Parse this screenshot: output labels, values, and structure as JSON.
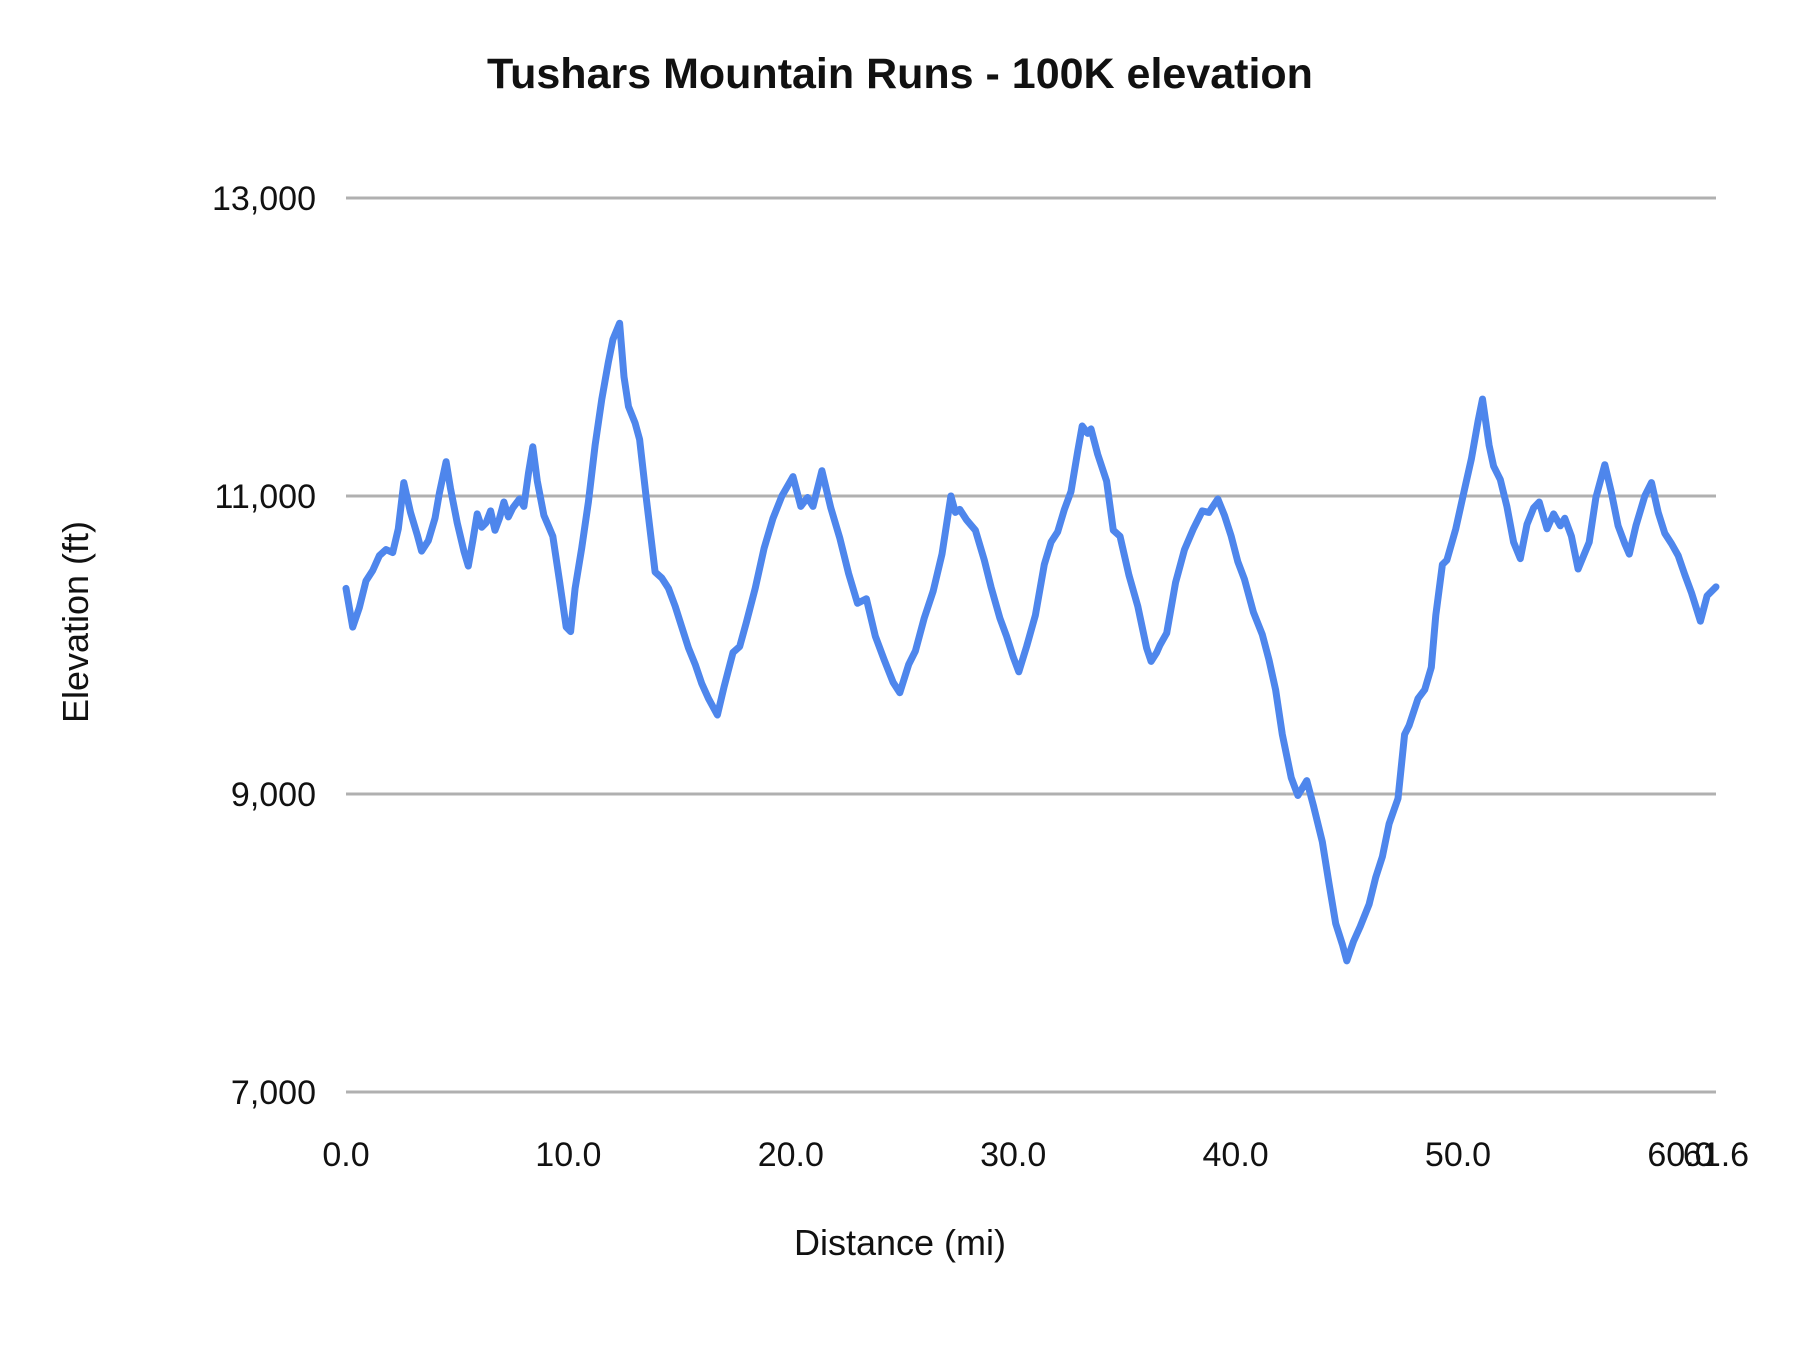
{
  "chart": {
    "title": "Tushars Mountain Runs - 100K elevation",
    "x_axis_title": "Distance (mi)",
    "y_axis_title": "Elevation (ft)",
    "line_color": "#4e86ec",
    "gridline_color": "#b0b0b0",
    "text_color": "#111111",
    "background_color": "#ffffff"
  },
  "chart_data": {
    "type": "line",
    "title": "Tushars Mountain Runs - 100K elevation",
    "xlabel": "Distance (mi)",
    "ylabel": "Elevation (ft)",
    "xlim": [
      0,
      61.6
    ],
    "ylim": [
      7000,
      13000
    ],
    "grid": "horizontal",
    "legend_position": "none",
    "x_ticks": [
      {
        "label": "0.0",
        "value": 0
      },
      {
        "label": "10.0",
        "value": 10
      },
      {
        "label": "20.0",
        "value": 20
      },
      {
        "label": "30.0",
        "value": 30
      },
      {
        "label": "40.0",
        "value": 40
      },
      {
        "label": "50.0",
        "value": 50
      },
      {
        "label": "60.0",
        "value": 60
      },
      {
        "label": "61.6",
        "value": 61.6
      }
    ],
    "y_ticks": [
      {
        "label": "7,000",
        "value": 7000
      },
      {
        "label": "9,000",
        "value": 9000
      },
      {
        "label": "11,000",
        "value": 11000
      },
      {
        "label": "13,000",
        "value": 13000
      }
    ],
    "series": [
      {
        "name": "Elevation (ft)",
        "color": "#4e86ec",
        "points": [
          [
            0,
            10380
          ],
          [
            0.3,
            10120
          ],
          [
            0.6,
            10250
          ],
          [
            0.9,
            10430
          ],
          [
            1.2,
            10500
          ],
          [
            1.5,
            10600
          ],
          [
            1.8,
            10640
          ],
          [
            2.1,
            10620
          ],
          [
            2.35,
            10780
          ],
          [
            2.6,
            11090
          ],
          [
            2.9,
            10890
          ],
          [
            3.2,
            10740
          ],
          [
            3.4,
            10630
          ],
          [
            3.7,
            10700
          ],
          [
            4.0,
            10850
          ],
          [
            4.2,
            11020
          ],
          [
            4.5,
            11230
          ],
          [
            4.7,
            11050
          ],
          [
            5.0,
            10820
          ],
          [
            5.3,
            10630
          ],
          [
            5.5,
            10530
          ],
          [
            5.7,
            10700
          ],
          [
            5.9,
            10880
          ],
          [
            6.1,
            10790
          ],
          [
            6.3,
            10820
          ],
          [
            6.5,
            10900
          ],
          [
            6.7,
            10770
          ],
          [
            6.9,
            10850
          ],
          [
            7.1,
            10960
          ],
          [
            7.3,
            10860
          ],
          [
            7.5,
            10920
          ],
          [
            7.8,
            10980
          ],
          [
            8.0,
            10930
          ],
          [
            8.2,
            11150
          ],
          [
            8.4,
            11330
          ],
          [
            8.6,
            11100
          ],
          [
            8.9,
            10870
          ],
          [
            9.1,
            10800
          ],
          [
            9.3,
            10730
          ],
          [
            9.6,
            10430
          ],
          [
            9.9,
            10120
          ],
          [
            10.1,
            10090
          ],
          [
            10.3,
            10380
          ],
          [
            10.6,
            10650
          ],
          [
            10.9,
            10960
          ],
          [
            11.2,
            11340
          ],
          [
            11.5,
            11650
          ],
          [
            11.8,
            11900
          ],
          [
            12.0,
            12050
          ],
          [
            12.3,
            12160
          ],
          [
            12.5,
            11800
          ],
          [
            12.7,
            11600
          ],
          [
            13.0,
            11490
          ],
          [
            13.2,
            11380
          ],
          [
            13.5,
            10990
          ],
          [
            13.9,
            10490
          ],
          [
            14.2,
            10450
          ],
          [
            14.5,
            10380
          ],
          [
            14.8,
            10260
          ],
          [
            15.1,
            10120
          ],
          [
            15.4,
            9980
          ],
          [
            15.7,
            9870
          ],
          [
            16.0,
            9740
          ],
          [
            16.3,
            9640
          ],
          [
            16.7,
            9530
          ],
          [
            17.0,
            9720
          ],
          [
            17.4,
            9950
          ],
          [
            17.7,
            9990
          ],
          [
            18.0,
            10150
          ],
          [
            18.4,
            10380
          ],
          [
            18.8,
            10650
          ],
          [
            19.2,
            10850
          ],
          [
            19.6,
            11000
          ],
          [
            20.1,
            11130
          ],
          [
            20.45,
            10930
          ],
          [
            20.75,
            10990
          ],
          [
            21.0,
            10930
          ],
          [
            21.4,
            11170
          ],
          [
            21.8,
            10920
          ],
          [
            22.2,
            10720
          ],
          [
            22.6,
            10480
          ],
          [
            23.0,
            10280
          ],
          [
            23.4,
            10310
          ],
          [
            23.8,
            10060
          ],
          [
            24.2,
            9900
          ],
          [
            24.6,
            9750
          ],
          [
            24.9,
            9680
          ],
          [
            25.3,
            9870
          ],
          [
            25.6,
            9960
          ],
          [
            26.0,
            10180
          ],
          [
            26.4,
            10360
          ],
          [
            26.8,
            10610
          ],
          [
            27.2,
            11000
          ],
          [
            27.4,
            10890
          ],
          [
            27.6,
            10910
          ],
          [
            27.9,
            10840
          ],
          [
            28.3,
            10770
          ],
          [
            28.7,
            10570
          ],
          [
            29.0,
            10390
          ],
          [
            29.4,
            10180
          ],
          [
            29.7,
            10060
          ],
          [
            30.0,
            9920
          ],
          [
            30.25,
            9820
          ],
          [
            30.6,
            9990
          ],
          [
            31.0,
            10200
          ],
          [
            31.4,
            10540
          ],
          [
            31.7,
            10690
          ],
          [
            32.0,
            10760
          ],
          [
            32.3,
            10910
          ],
          [
            32.6,
            11030
          ],
          [
            32.9,
            11300
          ],
          [
            33.1,
            11470
          ],
          [
            33.35,
            11420
          ],
          [
            33.5,
            11450
          ],
          [
            33.8,
            11280
          ],
          [
            34.2,
            11100
          ],
          [
            34.5,
            10770
          ],
          [
            34.8,
            10730
          ],
          [
            35.2,
            10470
          ],
          [
            35.6,
            10260
          ],
          [
            36.0,
            9980
          ],
          [
            36.2,
            9890
          ],
          [
            36.45,
            9950
          ],
          [
            36.6,
            10000
          ],
          [
            36.9,
            10080
          ],
          [
            37.3,
            10420
          ],
          [
            37.7,
            10640
          ],
          [
            38.1,
            10780
          ],
          [
            38.5,
            10900
          ],
          [
            38.8,
            10890
          ],
          [
            39.2,
            10980
          ],
          [
            39.5,
            10870
          ],
          [
            39.8,
            10730
          ],
          [
            40.1,
            10560
          ],
          [
            40.4,
            10440
          ],
          [
            40.8,
            10220
          ],
          [
            41.2,
            10070
          ],
          [
            41.5,
            9900
          ],
          [
            41.8,
            9700
          ],
          [
            42.1,
            9400
          ],
          [
            42.5,
            9110
          ],
          [
            42.8,
            8990
          ],
          [
            43.2,
            9090
          ],
          [
            43.5,
            8920
          ],
          [
            43.9,
            8680
          ],
          [
            44.2,
            8400
          ],
          [
            44.5,
            8130
          ],
          [
            44.8,
            7990
          ],
          [
            45.0,
            7880
          ],
          [
            45.3,
            8010
          ],
          [
            45.6,
            8110
          ],
          [
            46.0,
            8260
          ],
          [
            46.3,
            8440
          ],
          [
            46.6,
            8580
          ],
          [
            46.9,
            8800
          ],
          [
            47.3,
            8970
          ],
          [
            47.6,
            9400
          ],
          [
            47.8,
            9460
          ],
          [
            48.2,
            9640
          ],
          [
            48.5,
            9700
          ],
          [
            48.8,
            9850
          ],
          [
            49.0,
            10200
          ],
          [
            49.3,
            10540
          ],
          [
            49.5,
            10570
          ],
          [
            49.9,
            10780
          ],
          [
            50.3,
            11050
          ],
          [
            50.6,
            11250
          ],
          [
            50.9,
            11500
          ],
          [
            51.1,
            11650
          ],
          [
            51.4,
            11340
          ],
          [
            51.6,
            11200
          ],
          [
            51.9,
            11110
          ],
          [
            52.2,
            10930
          ],
          [
            52.5,
            10690
          ],
          [
            52.8,
            10580
          ],
          [
            53.1,
            10810
          ],
          [
            53.4,
            10920
          ],
          [
            53.65,
            10960
          ],
          [
            54.0,
            10780
          ],
          [
            54.3,
            10880
          ],
          [
            54.6,
            10800
          ],
          [
            54.8,
            10850
          ],
          [
            55.1,
            10730
          ],
          [
            55.4,
            10510
          ],
          [
            55.9,
            10690
          ],
          [
            56.2,
            10990
          ],
          [
            56.6,
            11210
          ],
          [
            56.9,
            11020
          ],
          [
            57.2,
            10800
          ],
          [
            57.5,
            10680
          ],
          [
            57.7,
            10610
          ],
          [
            58.0,
            10800
          ],
          [
            58.4,
            11000
          ],
          [
            58.7,
            11090
          ],
          [
            59.0,
            10890
          ],
          [
            59.3,
            10750
          ],
          [
            59.6,
            10680
          ],
          [
            59.9,
            10600
          ],
          [
            60.2,
            10470
          ],
          [
            60.5,
            10350
          ],
          [
            60.9,
            10160
          ],
          [
            61.2,
            10330
          ],
          [
            61.6,
            10390
          ]
        ]
      }
    ]
  }
}
